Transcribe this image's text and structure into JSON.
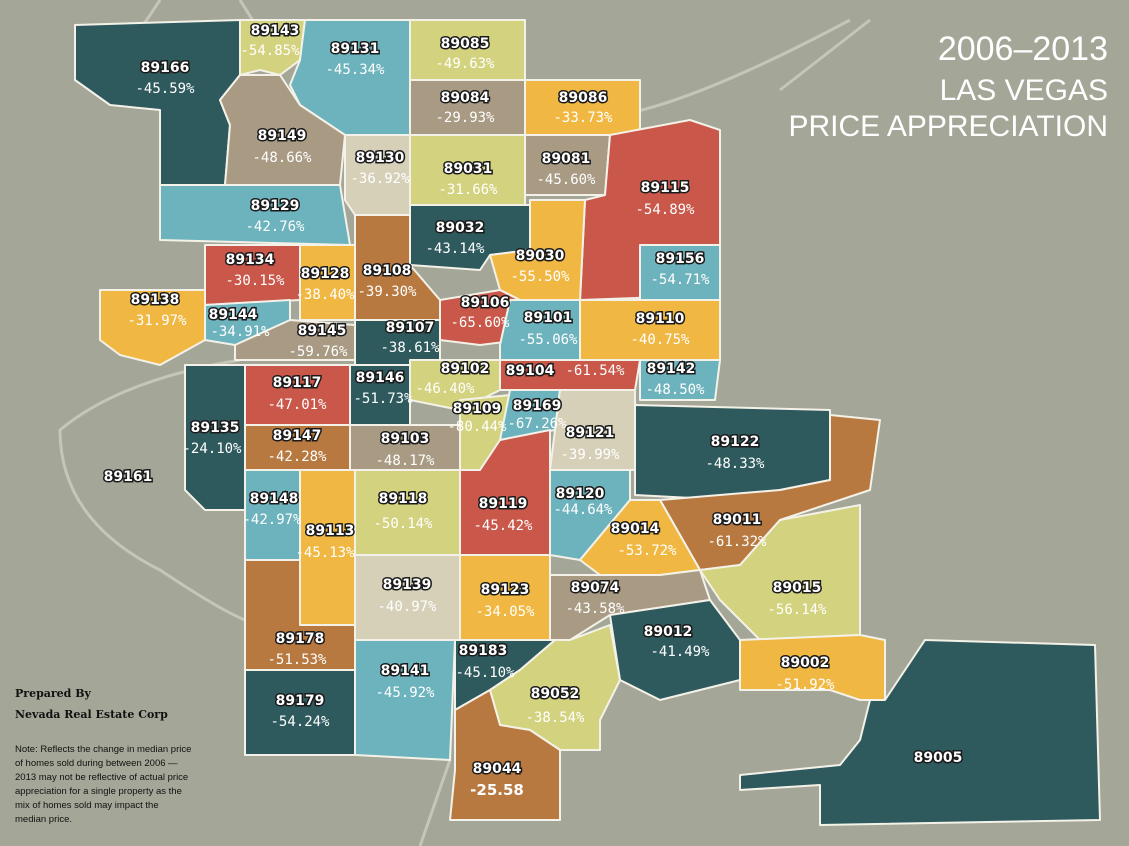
{
  "title": {
    "years": "2006–2013",
    "line1": "LAS VEGAS",
    "line2": "PRICE APPRECIATION"
  },
  "credit": {
    "line1": "Prepared By",
    "line2": "Nevada Real Estate Corp"
  },
  "note": [
    "Note: Reflects the change in median price",
    "of homes sold during between 2006 —",
    "2013 may not be reflective of actual price",
    "appreciation for a single property as the",
    "mix of homes sold may impact the",
    "median price."
  ],
  "colors": {
    "background": "#a4a697",
    "teal_dark": "#2e5a5e",
    "teal_light": "#6db3bd",
    "khaki": "#d3d27e",
    "gold": "#f0b842",
    "taupe": "#a89a83",
    "red": "#c9574a",
    "brown": "#b87940",
    "beige": "#d6d0b8",
    "border": "#f4f2e8"
  },
  "regions": [
    {
      "zip": "89143",
      "change": "-54.85%",
      "color": "khaki"
    },
    {
      "zip": "89166",
      "change": "-45.59%",
      "color": "teal_dark"
    },
    {
      "zip": "89131",
      "change": "-45.34%",
      "color": "teal_light"
    },
    {
      "zip": "89085",
      "change": "-49.63%",
      "color": "khaki"
    },
    {
      "zip": "89084",
      "change": "-29.93%",
      "color": "taupe"
    },
    {
      "zip": "89086",
      "change": "-33.73%",
      "color": "gold"
    },
    {
      "zip": "89149",
      "change": "-48.66%",
      "color": "taupe"
    },
    {
      "zip": "89130",
      "change": "-36.92%",
      "color": "beige"
    },
    {
      "zip": "89031",
      "change": "-31.66%",
      "color": "khaki"
    },
    {
      "zip": "89081",
      "change": "-45.60%",
      "color": "taupe"
    },
    {
      "zip": "89115",
      "change": "-54.89%",
      "color": "red"
    },
    {
      "zip": "89129",
      "change": "-42.76%",
      "color": "teal_light"
    },
    {
      "zip": "89032",
      "change": "-43.14%",
      "color": "teal_dark"
    },
    {
      "zip": "89134",
      "change": "-30.15%",
      "color": "red"
    },
    {
      "zip": "89128",
      "change": "-38.40%",
      "color": "gold"
    },
    {
      "zip": "89108",
      "change": "-39.30%",
      "color": "brown"
    },
    {
      "zip": "89030",
      "change": "-55.50%",
      "color": "gold"
    },
    {
      "zip": "89156",
      "change": "-54.71%",
      "color": "teal_light"
    },
    {
      "zip": "89138",
      "change": "-31.97%",
      "color": "gold"
    },
    {
      "zip": "89144",
      "change": "-34.91%",
      "color": "teal_light"
    },
    {
      "zip": "89145",
      "change": "-59.76%",
      "color": "taupe"
    },
    {
      "zip": "89107",
      "change": "-38.61%",
      "color": "teal_dark"
    },
    {
      "zip": "89106",
      "change": "-65.60%",
      "color": "red"
    },
    {
      "zip": "89101",
      "change": "-55.06%",
      "color": "teal_light"
    },
    {
      "zip": "89110",
      "change": "-40.75%",
      "color": "gold"
    },
    {
      "zip": "89117",
      "change": "-47.01%",
      "color": "red"
    },
    {
      "zip": "89146",
      "change": "-51.73%",
      "color": "teal_dark"
    },
    {
      "zip": "89102",
      "change": "-46.40%",
      "color": "khaki"
    },
    {
      "zip": "89104",
      "change": "-61.54%",
      "color": "red"
    },
    {
      "zip": "89142",
      "change": "-48.50%",
      "color": "teal_light"
    },
    {
      "zip": "89109",
      "change": "-80.44%",
      "color": "khaki"
    },
    {
      "zip": "89169",
      "change": "-67.26%",
      "color": "teal_light"
    },
    {
      "zip": "89135",
      "change": "-24.10%",
      "color": "teal_dark"
    },
    {
      "zip": "89147",
      "change": "-42.28%",
      "color": "brown"
    },
    {
      "zip": "89103",
      "change": "-48.17%",
      "color": "taupe"
    },
    {
      "zip": "89121",
      "change": "-39.99%",
      "color": "beige"
    },
    {
      "zip": "89122",
      "change": "-48.33%",
      "color": "teal_dark"
    },
    {
      "zip": "89161",
      "change": "",
      "color": "background"
    },
    {
      "zip": "89148",
      "change": "-42.97%",
      "color": "teal_light"
    },
    {
      "zip": "89113",
      "change": "-45.13%",
      "color": "gold"
    },
    {
      "zip": "89118",
      "change": "-50.14%",
      "color": "khaki"
    },
    {
      "zip": "89119",
      "change": "-45.42%",
      "color": "red"
    },
    {
      "zip": "89120",
      "change": "-44.64%",
      "color": "teal_light"
    },
    {
      "zip": "89014",
      "change": "-53.72%",
      "color": "gold"
    },
    {
      "zip": "89011",
      "change": "-61.32%",
      "color": "brown"
    },
    {
      "zip": "89015",
      "change": "-56.14%",
      "color": "khaki"
    },
    {
      "zip": "89139",
      "change": "-40.97%",
      "color": "beige"
    },
    {
      "zip": "89123",
      "change": "-34.05%",
      "color": "gold"
    },
    {
      "zip": "89074",
      "change": "-43.58%",
      "color": "taupe"
    },
    {
      "zip": "89012",
      "change": "-41.49%",
      "color": "teal_dark"
    },
    {
      "zip": "89178",
      "change": "-51.53%",
      "color": "brown"
    },
    {
      "zip": "89141",
      "change": "-45.92%",
      "color": "teal_light"
    },
    {
      "zip": "89183",
      "change": "-45.10%",
      "color": "teal_dark"
    },
    {
      "zip": "89052",
      "change": "-38.54%",
      "color": "khaki"
    },
    {
      "zip": "89002",
      "change": "-51.92%",
      "color": "gold"
    },
    {
      "zip": "89179",
      "change": "-54.24%",
      "color": "teal_dark"
    },
    {
      "zip": "89044",
      "change": "-25.58",
      "color": "brown"
    },
    {
      "zip": "89005",
      "change": "",
      "color": "teal_dark"
    }
  ]
}
